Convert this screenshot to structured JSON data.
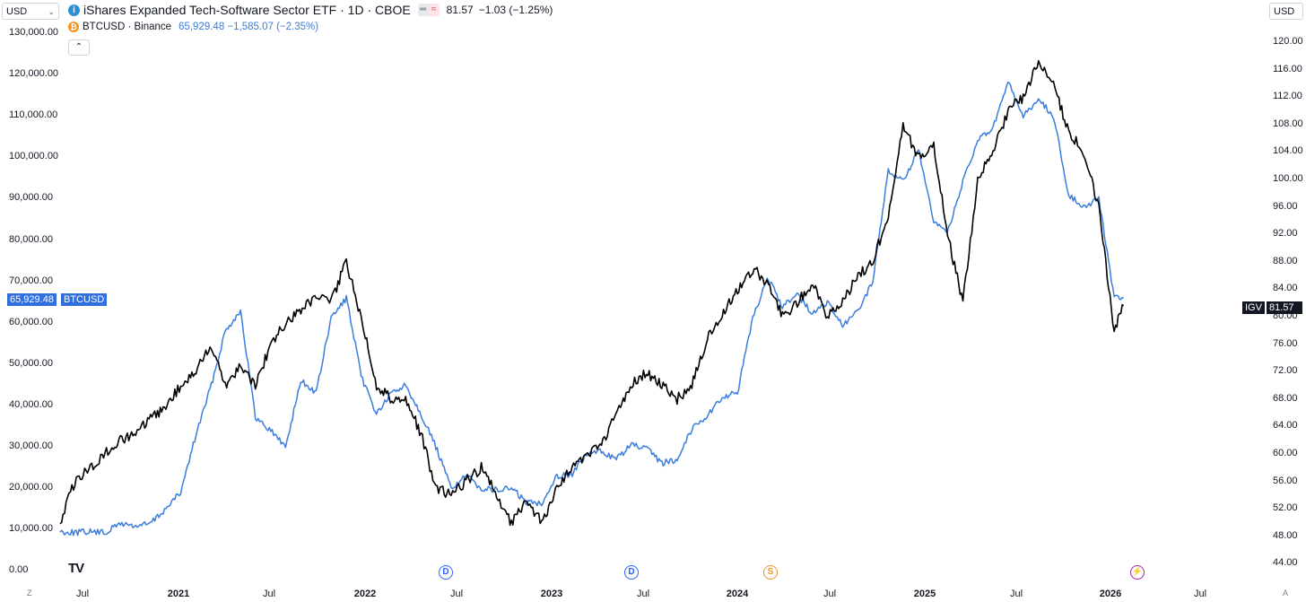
{
  "currency_left": "USD",
  "currency_right": "USD",
  "legend": {
    "igv_title": "iShares Expanded Tech-Software Sector ETF · 1D · CBOE",
    "igv_price": "81.57",
    "igv_change": "−1.03 (−1.25%)",
    "btc_title": "BTCUSD · Binance",
    "btc_values": "65,929.48 −1,585.07 (−2.35%)"
  },
  "tags": {
    "btc_price": "65,929.48",
    "btc_name": "BTCUSD",
    "igv_name": "IGV",
    "igv_price": "81.57"
  },
  "left_axis": [
    "130,000.00",
    "120,000.00",
    "110,000.00",
    "100,000.00",
    "90,000.00",
    "80,000.00",
    "70,000.00",
    "60,000.00",
    "50,000.00",
    "40,000.00",
    "30,000.00",
    "20,000.00",
    "10,000.00",
    "0.00"
  ],
  "right_axis": [
    "120.00",
    "116.00",
    "112.00",
    "108.00",
    "104.00",
    "100.00",
    "96.00",
    "92.00",
    "88.00",
    "84.00",
    "80.00",
    "76.00",
    "72.00",
    "68.00",
    "64.00",
    "60.00",
    "56.00",
    "52.00",
    "48.00",
    "44.00"
  ],
  "x_axis": [
    {
      "label": "Jul",
      "year": false
    },
    {
      "label": "2021",
      "year": true
    },
    {
      "label": "Jul",
      "year": false
    },
    {
      "label": "2022",
      "year": true
    },
    {
      "label": "Jul",
      "year": false
    },
    {
      "label": "2023",
      "year": true
    },
    {
      "label": "Jul",
      "year": false
    },
    {
      "label": "2024",
      "year": true
    },
    {
      "label": "Jul",
      "year": false
    },
    {
      "label": "2025",
      "year": true
    },
    {
      "label": "Jul",
      "year": false
    },
    {
      "label": "2026",
      "year": true
    },
    {
      "label": "Jul",
      "year": false
    }
  ],
  "events": [
    {
      "type": "d",
      "label": "D"
    },
    {
      "type": "d",
      "label": "D"
    },
    {
      "type": "s",
      "label": "S"
    },
    {
      "type": "e",
      "label": "⚡"
    }
  ],
  "corners": {
    "left": "Z",
    "right": "A"
  },
  "colors": {
    "btc": "#3b7ddd",
    "igv": "#000000",
    "btc_tag": "#2f6fde",
    "igv_tag": "#131722"
  },
  "chart_data": {
    "type": "line",
    "title": "iShares Expanded Tech-Software Sector ETF · 1D · CBOE",
    "x_unit": "date",
    "left_axis": {
      "series": "BTCUSD",
      "ylim": [
        0,
        130000
      ]
    },
    "right_axis": {
      "series": "IGV",
      "ylim": [
        44,
        120
      ]
    },
    "series": [
      {
        "name": "BTCUSD",
        "axis": "left",
        "color": "#3b7ddd",
        "points": [
          [
            "2020-04-01",
            9500
          ],
          [
            "2020-05-01",
            9300
          ],
          [
            "2020-06-01",
            9500
          ],
          [
            "2020-07-01",
            9200
          ],
          [
            "2020-08-01",
            11500
          ],
          [
            "2020-09-01",
            10800
          ],
          [
            "2020-10-01",
            11500
          ],
          [
            "2020-11-01",
            15000
          ],
          [
            "2020-12-01",
            19000
          ],
          [
            "2021-01-01",
            33000
          ],
          [
            "2021-02-01",
            45000
          ],
          [
            "2021-03-01",
            58000
          ],
          [
            "2021-04-01",
            63000
          ],
          [
            "2021-05-01",
            37000
          ],
          [
            "2021-06-01",
            34000
          ],
          [
            "2021-07-01",
            30000
          ],
          [
            "2021-08-01",
            46000
          ],
          [
            "2021-09-01",
            43000
          ],
          [
            "2021-10-01",
            61000
          ],
          [
            "2021-11-01",
            66000
          ],
          [
            "2021-12-01",
            47000
          ],
          [
            "2022-01-01",
            38000
          ],
          [
            "2022-02-01",
            43000
          ],
          [
            "2022-03-01",
            45000
          ],
          [
            "2022-04-01",
            38000
          ],
          [
            "2022-05-01",
            30000
          ],
          [
            "2022-06-01",
            20000
          ],
          [
            "2022-07-01",
            23000
          ],
          [
            "2022-08-01",
            20000
          ],
          [
            "2022-09-01",
            19500
          ],
          [
            "2022-10-01",
            20000
          ],
          [
            "2022-11-01",
            16500
          ],
          [
            "2022-12-01",
            16500
          ],
          [
            "2023-01-01",
            23000
          ],
          [
            "2023-02-01",
            23500
          ],
          [
            "2023-03-01",
            28000
          ],
          [
            "2023-04-01",
            29000
          ],
          [
            "2023-05-01",
            27000
          ],
          [
            "2023-06-01",
            30500
          ],
          [
            "2023-07-01",
            29500
          ],
          [
            "2023-08-01",
            26000
          ],
          [
            "2023-09-01",
            27000
          ],
          [
            "2023-10-01",
            34500
          ],
          [
            "2023-11-01",
            37500
          ],
          [
            "2023-12-01",
            42000
          ],
          [
            "2024-01-01",
            43000
          ],
          [
            "2024-02-01",
            61000
          ],
          [
            "2024-03-01",
            71000
          ],
          [
            "2024-04-01",
            64000
          ],
          [
            "2024-05-01",
            67000
          ],
          [
            "2024-06-01",
            62000
          ],
          [
            "2024-07-01",
            65000
          ],
          [
            "2024-08-01",
            59000
          ],
          [
            "2024-09-01",
            63000
          ],
          [
            "2024-10-01",
            70000
          ],
          [
            "2024-11-01",
            97000
          ],
          [
            "2024-12-01",
            94000
          ],
          [
            "2025-01-01",
            102000
          ],
          [
            "2025-02-01",
            84000
          ],
          [
            "2025-03-01",
            82000
          ],
          [
            "2025-04-01",
            94000
          ],
          [
            "2025-05-01",
            104000
          ],
          [
            "2025-06-01",
            107000
          ],
          [
            "2025-07-01",
            118000
          ],
          [
            "2025-08-01",
            110000
          ],
          [
            "2025-09-01",
            114000
          ],
          [
            "2025-10-01",
            110000
          ],
          [
            "2025-11-01",
            91000
          ],
          [
            "2025-12-01",
            88000
          ],
          [
            "2026-01-01",
            90000
          ],
          [
            "2026-02-01",
            66000
          ],
          [
            "2026-02-20",
            65929.48
          ]
        ]
      },
      {
        "name": "IGV",
        "axis": "right",
        "color": "#000000",
        "points": [
          [
            "2020-04-01",
            50
          ],
          [
            "2020-05-01",
            56
          ],
          [
            "2020-06-01",
            58
          ],
          [
            "2020-07-01",
            60
          ],
          [
            "2020-08-01",
            62
          ],
          [
            "2020-09-01",
            63
          ],
          [
            "2020-10-01",
            65
          ],
          [
            "2020-11-01",
            67
          ],
          [
            "2020-12-01",
            70
          ],
          [
            "2021-01-01",
            72
          ],
          [
            "2021-02-01",
            76
          ],
          [
            "2021-03-01",
            70
          ],
          [
            "2021-04-01",
            73
          ],
          [
            "2021-05-01",
            70
          ],
          [
            "2021-06-01",
            76
          ],
          [
            "2021-07-01",
            79
          ],
          [
            "2021-08-01",
            81
          ],
          [
            "2021-09-01",
            83
          ],
          [
            "2021-10-01",
            82
          ],
          [
            "2021-11-01",
            88
          ],
          [
            "2021-12-01",
            80
          ],
          [
            "2022-01-01",
            70
          ],
          [
            "2022-02-01",
            68
          ],
          [
            "2022-03-01",
            68
          ],
          [
            "2022-04-01",
            63
          ],
          [
            "2022-05-01",
            55
          ],
          [
            "2022-06-01",
            54
          ],
          [
            "2022-07-01",
            56
          ],
          [
            "2022-08-01",
            58
          ],
          [
            "2022-09-01",
            54
          ],
          [
            "2022-10-01",
            50
          ],
          [
            "2022-11-01",
            53
          ],
          [
            "2022-12-01",
            50
          ],
          [
            "2023-01-01",
            55
          ],
          [
            "2023-02-01",
            58
          ],
          [
            "2023-03-01",
            60
          ],
          [
            "2023-04-01",
            61
          ],
          [
            "2023-05-01",
            66
          ],
          [
            "2023-06-01",
            70
          ],
          [
            "2023-07-01",
            72
          ],
          [
            "2023-08-01",
            70
          ],
          [
            "2023-09-01",
            68
          ],
          [
            "2023-10-01",
            70
          ],
          [
            "2023-11-01",
            77
          ],
          [
            "2023-12-01",
            80
          ],
          [
            "2024-01-01",
            84
          ],
          [
            "2024-02-01",
            87
          ],
          [
            "2024-03-01",
            85
          ],
          [
            "2024-04-01",
            80
          ],
          [
            "2024-05-01",
            82
          ],
          [
            "2024-06-01",
            85
          ],
          [
            "2024-07-01",
            80
          ],
          [
            "2024-08-01",
            82
          ],
          [
            "2024-09-01",
            86
          ],
          [
            "2024-10-01",
            88
          ],
          [
            "2024-11-01",
            95
          ],
          [
            "2024-12-01",
            108
          ],
          [
            "2025-01-01",
            103
          ],
          [
            "2025-02-01",
            105
          ],
          [
            "2025-03-01",
            92
          ],
          [
            "2025-04-01",
            82
          ],
          [
            "2025-05-01",
            100
          ],
          [
            "2025-06-01",
            104
          ],
          [
            "2025-07-01",
            110
          ],
          [
            "2025-08-01",
            112
          ],
          [
            "2025-09-01",
            117
          ],
          [
            "2025-10-01",
            114
          ],
          [
            "2025-11-01",
            107
          ],
          [
            "2025-12-01",
            104
          ],
          [
            "2026-01-01",
            96
          ],
          [
            "2026-02-01",
            78
          ],
          [
            "2026-02-20",
            81.57
          ]
        ]
      }
    ]
  }
}
